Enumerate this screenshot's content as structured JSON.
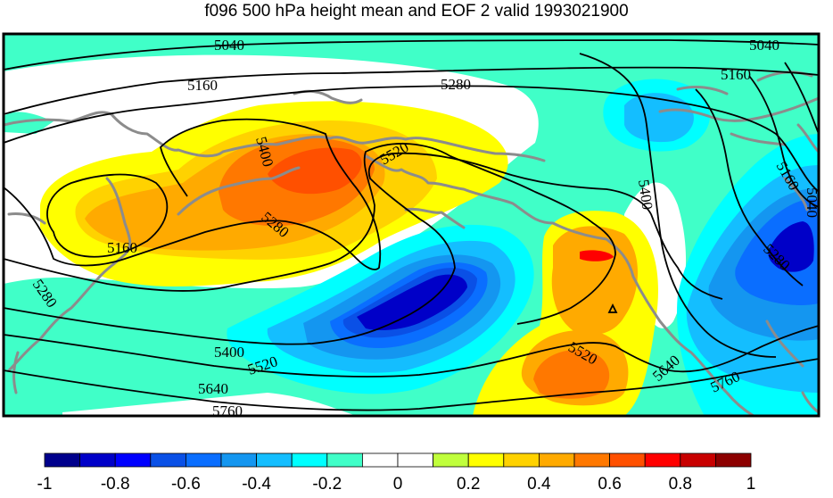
{
  "title": "f096 500 hPa height mean and EOF 2 valid 1993021900",
  "contour_labels": [
    "5040",
    "5040",
    "5160",
    "5160",
    "5160",
    "5160",
    "5280",
    "5280",
    "5280",
    "5280",
    "5400",
    "5400",
    "5400",
    "5520",
    "5520",
    "5520",
    "5640",
    "5640",
    "5760",
    "5760",
    "5040"
  ],
  "colorbar": {
    "colors": [
      "#00008c",
      "#0000c8",
      "#0000ff",
      "#0a50e6",
      "#0a6eff",
      "#1496f0",
      "#14beff",
      "#00ffff",
      "#40ffc8",
      "#ffffff",
      "#ffffff",
      "#c0ff3c",
      "#ffff00",
      "#ffd200",
      "#ffaa00",
      "#ff7800",
      "#ff5000",
      "#ff0000",
      "#c80000",
      "#8c0000"
    ],
    "tick_labels": [
      "-1",
      "-0.8",
      "-0.6",
      "-0.4",
      "-0.2",
      "0",
      "0.2",
      "0.4",
      "0.6",
      "0.8",
      "1"
    ]
  },
  "colors": {
    "aqua": "#40ffc8",
    "cyan": "#00ffff",
    "sky": "#14beff",
    "blue": "#1496f0",
    "blue2": "#0a6eff",
    "blue3": "#0a50e6",
    "navy": "#0000c8",
    "yellow": "#ffff00",
    "gold": "#ffd200",
    "orange": "#ffaa00",
    "orange2": "#ff7800",
    "red": "#ff5000",
    "red2": "#ff0000",
    "coast": "#8c8c8c"
  }
}
